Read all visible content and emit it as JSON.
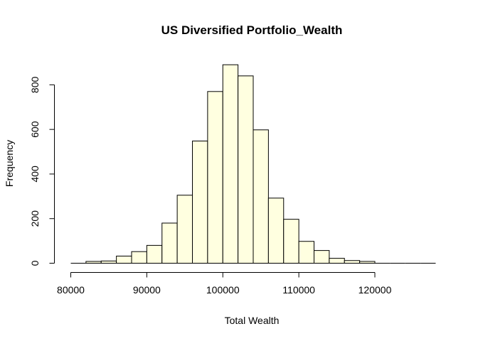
{
  "chart_data": {
    "type": "bar",
    "title": "US Diversified Portfolio_Wealth",
    "xlabel": "Total Wealth",
    "ylabel": "Frequency",
    "xlim": [
      80000,
      128000
    ],
    "ylim": [
      0,
      900
    ],
    "x_ticks": [
      80000,
      90000,
      100000,
      110000,
      120000
    ],
    "x_tick_labels": [
      "80000",
      "90000",
      "100000",
      "110000",
      "120000"
    ],
    "y_ticks": [
      0,
      200,
      400,
      600,
      800
    ],
    "y_tick_labels": [
      "0",
      "200",
      "400",
      "600",
      "800"
    ],
    "bin_width": 2000,
    "bins": [
      {
        "x0": 80000,
        "x1": 82000,
        "count": 0
      },
      {
        "x0": 82000,
        "x1": 84000,
        "count": 8
      },
      {
        "x0": 84000,
        "x1": 86000,
        "count": 10
      },
      {
        "x0": 86000,
        "x1": 88000,
        "count": 32
      },
      {
        "x0": 88000,
        "x1": 90000,
        "count": 52
      },
      {
        "x0": 90000,
        "x1": 92000,
        "count": 80
      },
      {
        "x0": 92000,
        "x1": 94000,
        "count": 180
      },
      {
        "x0": 94000,
        "x1": 96000,
        "count": 305
      },
      {
        "x0": 96000,
        "x1": 98000,
        "count": 548
      },
      {
        "x0": 98000,
        "x1": 100000,
        "count": 770
      },
      {
        "x0": 100000,
        "x1": 102000,
        "count": 890
      },
      {
        "x0": 102000,
        "x1": 104000,
        "count": 840
      },
      {
        "x0": 104000,
        "x1": 106000,
        "count": 598
      },
      {
        "x0": 106000,
        "x1": 108000,
        "count": 292
      },
      {
        "x0": 108000,
        "x1": 110000,
        "count": 197
      },
      {
        "x0": 110000,
        "x1": 112000,
        "count": 98
      },
      {
        "x0": 112000,
        "x1": 114000,
        "count": 57
      },
      {
        "x0": 114000,
        "x1": 116000,
        "count": 22
      },
      {
        "x0": 116000,
        "x1": 118000,
        "count": 12
      },
      {
        "x0": 118000,
        "x1": 120000,
        "count": 8
      },
      {
        "x0": 120000,
        "x1": 122000,
        "count": 0
      },
      {
        "x0": 122000,
        "x1": 124000,
        "count": 0
      },
      {
        "x0": 124000,
        "x1": 126000,
        "count": 0
      },
      {
        "x0": 126000,
        "x1": 128000,
        "count": 0
      }
    ],
    "grid": false,
    "colors": {
      "bar_fill": "#FFFFE0",
      "bar_stroke": "#000000",
      "axis": "#000000",
      "background": "#FFFFFF"
    }
  }
}
